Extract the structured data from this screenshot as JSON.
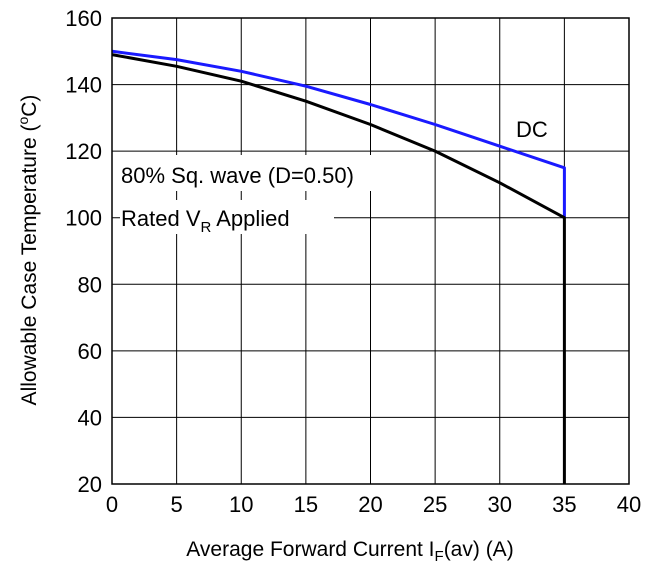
{
  "chart_data": {
    "type": "line",
    "title": "",
    "xlabel": {
      "prefix": "Average Forward Current I",
      "subscript": "F",
      "suffix": "(av) (A)"
    },
    "ylabel": {
      "prefix": "Allowable Case Temperature (",
      "superscript": "o",
      "suffix": "C)"
    },
    "xlim": [
      0,
      40
    ],
    "ylim": [
      20,
      160
    ],
    "xticks": [
      "0",
      "5",
      "10",
      "15",
      "20",
      "25",
      "30",
      "35",
      "40"
    ],
    "yticks": [
      "20",
      "40",
      "60",
      "80",
      "100",
      "120",
      "140",
      "160"
    ],
    "grid": true,
    "series": [
      {
        "name": "DC",
        "color": "#1a1aff",
        "x": [
          0,
          5,
          10,
          15,
          20,
          25,
          30,
          35,
          35
        ],
        "y": [
          150,
          147.5,
          144,
          139.5,
          134,
          128,
          121.5,
          115,
          100
        ]
      },
      {
        "name": "80% Sq. wave (D=0.50)",
        "color": "#000000",
        "x": [
          0,
          5,
          10,
          15,
          20,
          25,
          30,
          35,
          35
        ],
        "y": [
          149,
          145.5,
          141,
          135,
          128,
          120,
          110.5,
          100,
          20
        ]
      }
    ],
    "annotations": {
      "dc_label": "DC",
      "sq_wave_label": "80% Sq. wave (D=0.50)",
      "rated_prefix": "Rated V",
      "rated_subscript": "R",
      "rated_suffix": " Applied"
    }
  }
}
